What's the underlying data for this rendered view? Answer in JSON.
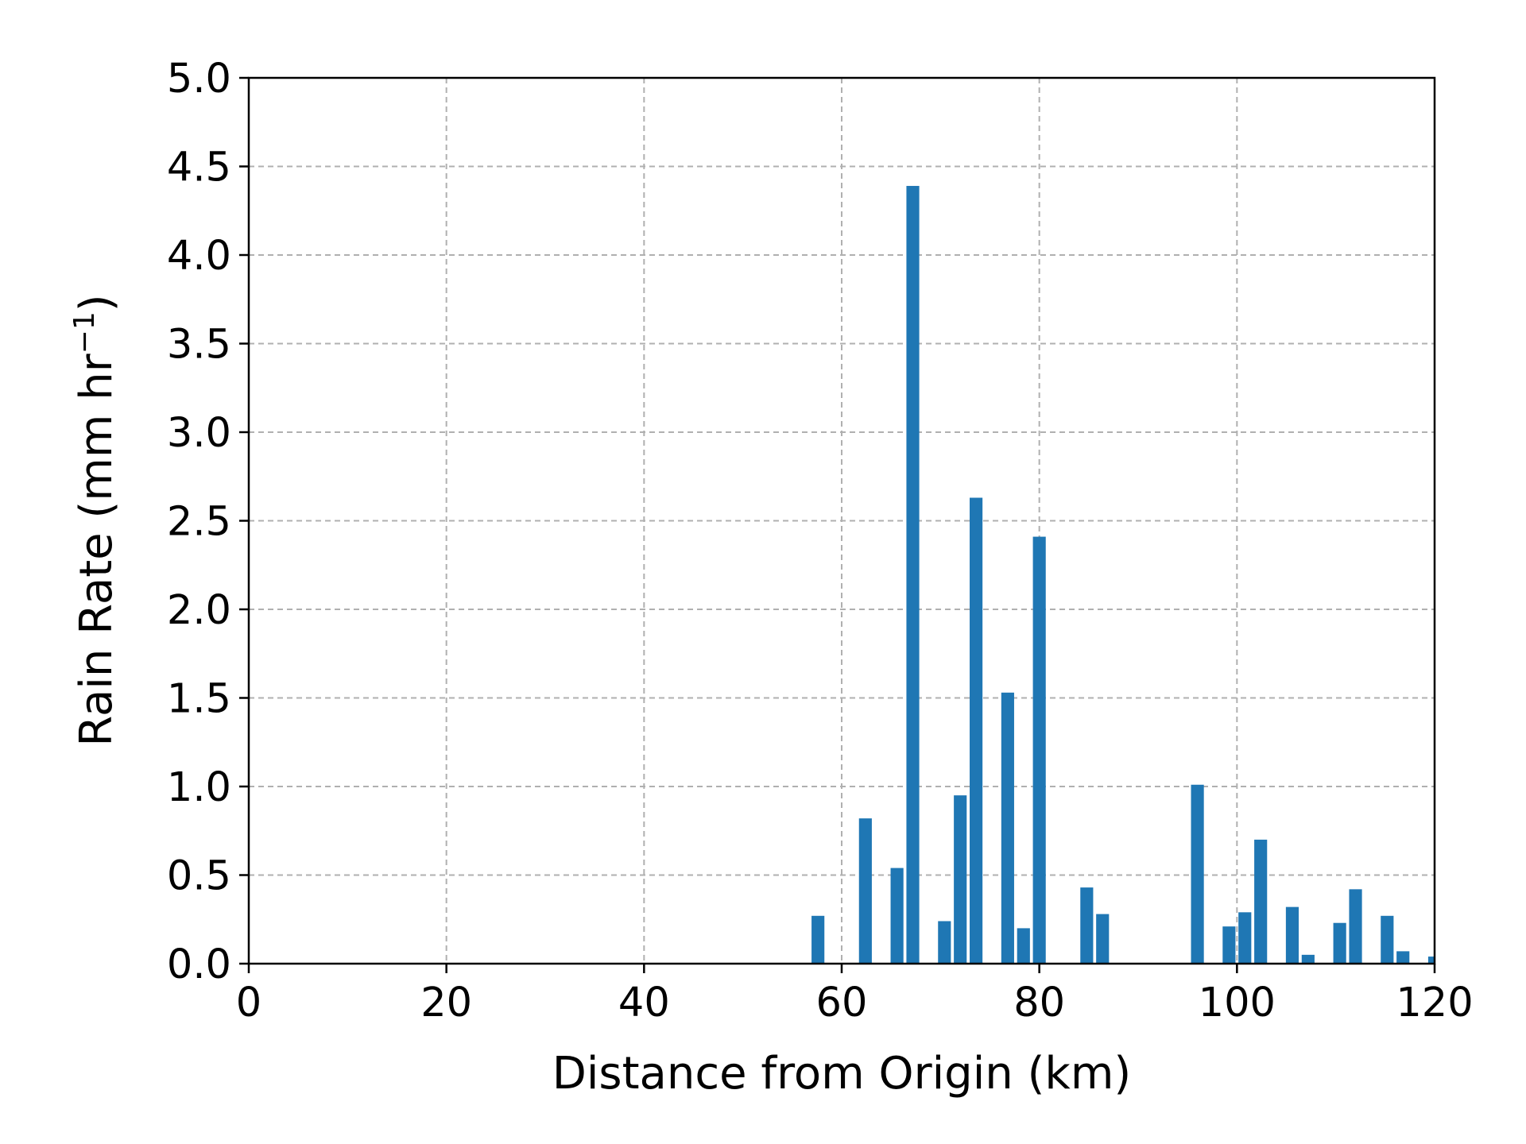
{
  "chart_data": {
    "type": "bar",
    "xlabel": "Distance from Origin (km)",
    "ylabel_prefix": "Rain Rate (mm hr",
    "ylabel_sup": "−1",
    "ylabel_suffix": ")",
    "xlim": [
      0,
      120
    ],
    "ylim": [
      0,
      5.0
    ],
    "xticks": [
      "0",
      "20",
      "40",
      "60",
      "80",
      "100",
      "120"
    ],
    "xtick_values": [
      0,
      20,
      40,
      60,
      80,
      100,
      120
    ],
    "yticks": [
      "0.0",
      "0.5",
      "1.0",
      "1.5",
      "2.0",
      "2.5",
      "3.0",
      "3.5",
      "4.0",
      "4.5",
      "5.0"
    ],
    "ytick_values": [
      0,
      0.5,
      1.0,
      1.5,
      2.0,
      2.5,
      3.0,
      3.5,
      4.0,
      4.5,
      5.0
    ],
    "grid": true,
    "bar_color": "#1f77b4",
    "bar_width": 1.3,
    "x": [
      57.6,
      62.4,
      65.6,
      67.2,
      70.4,
      72.0,
      73.6,
      76.8,
      78.4,
      80.0,
      84.8,
      86.4,
      96.0,
      99.2,
      100.8,
      102.4,
      105.6,
      107.2,
      110.4,
      112.0,
      115.2,
      116.8,
      120.0
    ],
    "values": [
      0.27,
      0.82,
      0.54,
      4.39,
      0.24,
      0.95,
      2.63,
      1.53,
      0.2,
      2.41,
      0.43,
      0.28,
      1.01,
      0.21,
      0.29,
      0.7,
      0.32,
      0.05,
      0.23,
      0.42,
      0.27,
      0.07,
      0.04
    ]
  }
}
